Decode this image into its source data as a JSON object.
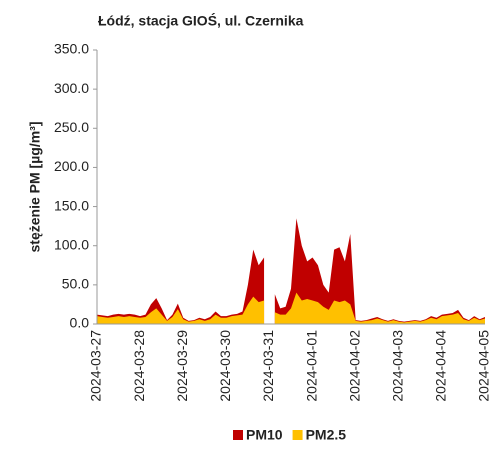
{
  "chart_data": {
    "type": "area",
    "title": "Łódź, stacja GIOŚ, ul. Czernika",
    "y_label": "stężenie PM [µg/m³]",
    "categories": [
      "2024-03-27",
      null,
      null,
      null,
      null,
      null,
      null,
      null,
      "2024-03-28",
      null,
      null,
      null,
      null,
      null,
      null,
      null,
      "2024-03-29",
      null,
      null,
      null,
      null,
      null,
      null,
      null,
      "2024-03-30",
      null,
      null,
      null,
      null,
      null,
      null,
      null,
      "2024-03-31",
      null,
      null,
      null,
      null,
      null,
      null,
      null,
      "2024-04-01",
      null,
      null,
      null,
      null,
      null,
      null,
      null,
      "2024-04-02",
      null,
      null,
      null,
      null,
      null,
      null,
      null,
      "2024-04-03",
      null,
      null,
      null,
      null,
      null,
      null,
      null,
      "2024-04-04",
      null,
      null,
      null,
      null,
      null,
      null,
      null,
      "2024-04-05"
    ],
    "series": [
      {
        "name": "PM10",
        "color": "#c00000",
        "values": [
          12,
          11,
          10,
          12,
          13,
          12,
          13,
          12,
          10,
          12,
          25,
          33,
          20,
          5,
          12,
          26,
          8,
          4,
          5,
          8,
          6,
          9,
          16,
          10,
          10,
          12,
          13,
          16,
          50,
          95,
          75,
          85,
          null,
          38,
          20,
          22,
          45,
          135,
          100,
          80,
          85,
          75,
          50,
          40,
          95,
          98,
          80,
          115,
          5,
          4,
          5,
          7,
          9,
          6,
          4,
          6,
          4,
          3,
          4,
          5,
          4,
          6,
          10,
          8,
          12,
          13,
          14,
          18,
          8,
          5,
          10,
          6,
          9
        ]
      },
      {
        "name": "PM2.5",
        "color": "#ffc000",
        "values": [
          10,
          9,
          8,
          9,
          10,
          9,
          10,
          9,
          8,
          9,
          15,
          20,
          12,
          4,
          9,
          19,
          6,
          3,
          4,
          6,
          4,
          6,
          12,
          8,
          8,
          10,
          11,
          12,
          25,
          35,
          28,
          30,
          null,
          15,
          12,
          12,
          20,
          40,
          30,
          32,
          30,
          28,
          22,
          18,
          30,
          28,
          30,
          25,
          4,
          3,
          4,
          5,
          7,
          5,
          3,
          5,
          3,
          2,
          3,
          4,
          3,
          5,
          8,
          6,
          10,
          11,
          12,
          14,
          6,
          4,
          8,
          5,
          7
        ]
      }
    ],
    "ylim": [
      0,
      350
    ],
    "yticks": [
      {
        "value": 0,
        "label": "0.0"
      },
      {
        "value": 50,
        "label": "50.0"
      },
      {
        "value": 100,
        "label": "100.0"
      },
      {
        "value": 150,
        "label": "150.0"
      },
      {
        "value": 200,
        "label": "200.0"
      },
      {
        "value": 250,
        "label": "250.0"
      },
      {
        "value": 300,
        "label": "300.0"
      },
      {
        "value": 350,
        "label": "350.0"
      }
    ],
    "grid": false,
    "legend": "bottom"
  }
}
